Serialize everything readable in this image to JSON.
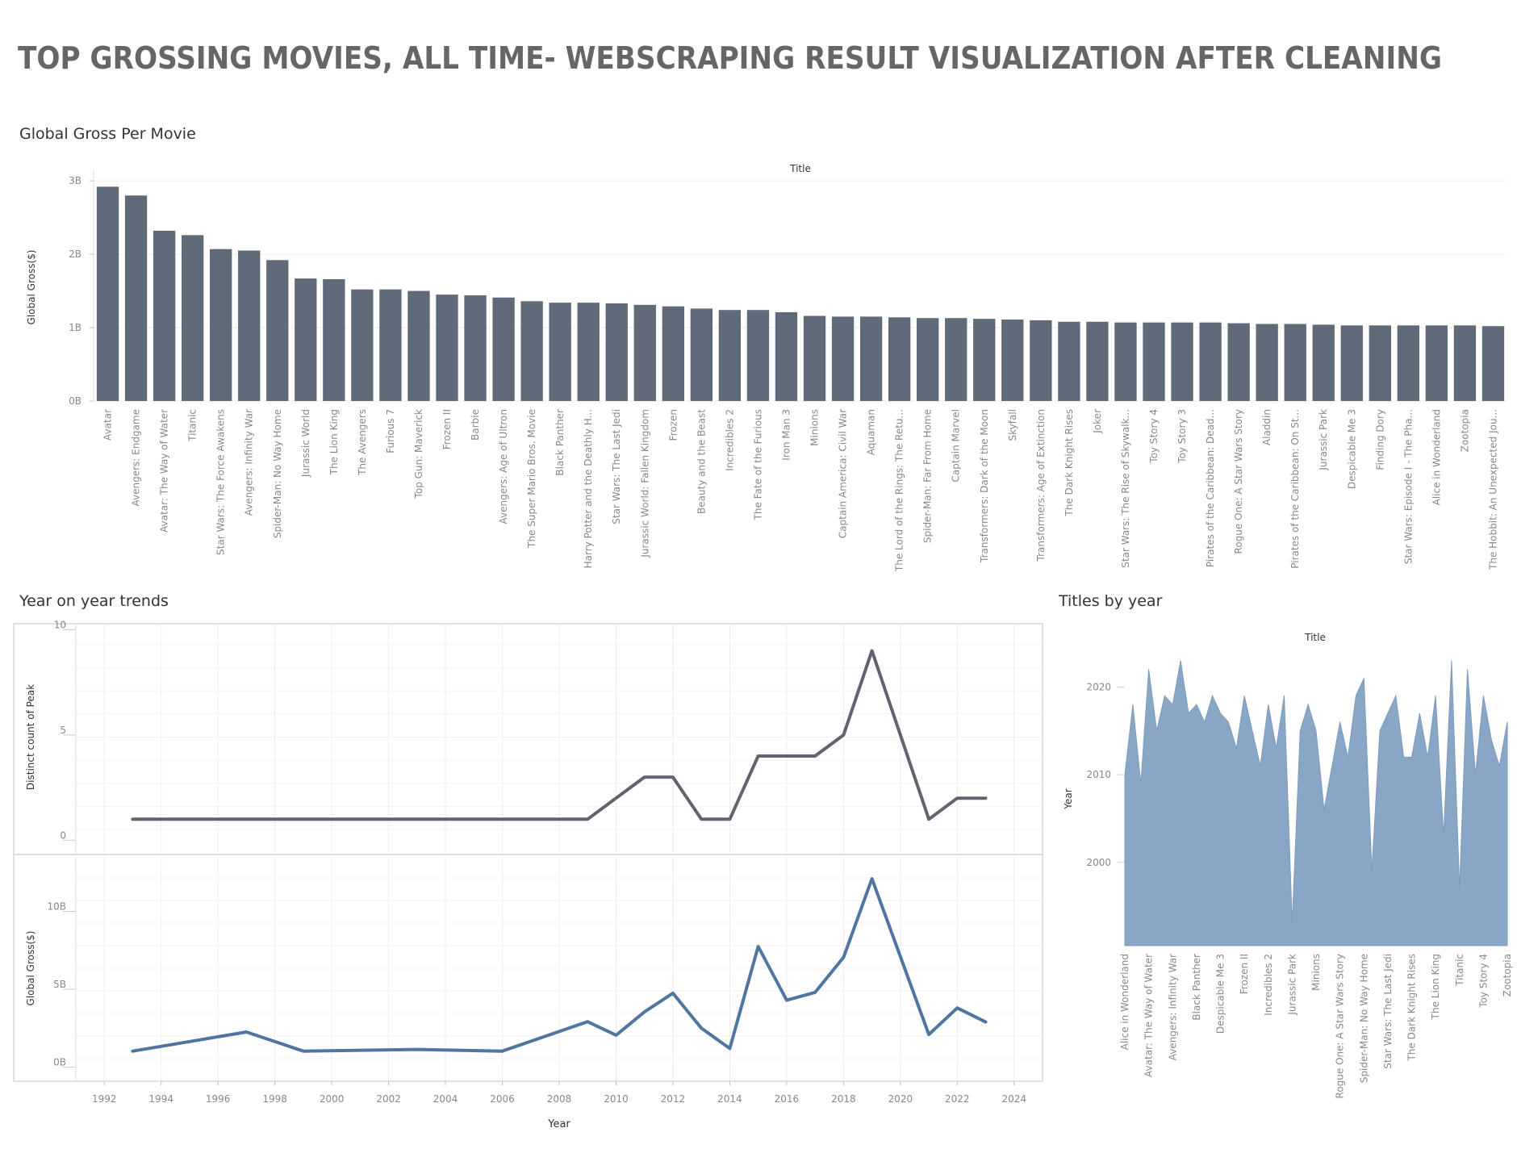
{
  "dashboard": {
    "title": "TOP GROSSING MOVIES, ALL TIME- WEBSCRAPING RESULT VISUALIZATION AFTER CLEANING"
  },
  "colors": {
    "bar": "#5f6b78",
    "line_peak": "#5f6470",
    "line_gross": "#4e76a0",
    "area": "#8aa6c6",
    "grid": "#ececec",
    "axis_text": "#888888",
    "title_text": "#666666"
  },
  "chart_data": [
    {
      "type": "bar",
      "title": "Global Gross Per Movie",
      "header": "Title",
      "xlabel": "",
      "ylabel": "Global Gross($)",
      "ylim": [
        0,
        3.1
      ],
      "yticks": [
        {
          "v": 0,
          "label": "0B"
        },
        {
          "v": 1,
          "label": "1B"
        },
        {
          "v": 2,
          "label": "2B"
        },
        {
          "v": 3,
          "label": "3B"
        }
      ],
      "grid": true,
      "categories": [
        "Avatar",
        "Avengers: Endgame",
        "Avatar: The Way of Water",
        "Titanic",
        "Star Wars: The Force Awakens",
        "Avengers: Infinity War",
        "Spider-Man: No Way Home",
        "Jurassic World",
        "The Lion King",
        "The Avengers",
        "Furious 7",
        "Top Gun: Maverick",
        "Frozen II",
        "Barbie",
        "Avengers: Age of Ultron",
        "The Super Mario Bros. Movie",
        "Black Panther",
        "Harry Potter and the Deathly H...",
        "Star Wars: The Last Jedi",
        "Jurassic World: Fallen Kingdom",
        "Frozen",
        "Beauty and the Beast",
        "Incredibles 2",
        "The Fate of the Furious",
        "Iron Man 3",
        "Minions",
        "Captain America: Civil War",
        "Aquaman",
        "The Lord of the Rings: The Retu...",
        "Spider-Man: Far From Home",
        "Captain Marvel",
        "Transformers: Dark of the Moon",
        "Skyfall",
        "Transformers: Age of Extinction",
        "The Dark Knight Rises",
        "Joker",
        "Star Wars: The Rise of Skywalk...",
        "Toy Story 4",
        "Toy Story 3",
        "Pirates of the Caribbean: Dead...",
        "Rogue One: A Star Wars Story",
        "Aladdin",
        "Pirates of the Caribbean: On St...",
        "Jurassic Park",
        "Despicable Me 3",
        "Finding Dory",
        "Star Wars: Episode I - The Pha...",
        "Alice in Wonderland",
        "Zootopia",
        "The Hobbit: An Unexpected Jou..."
      ],
      "values": [
        2.92,
        2.8,
        2.32,
        2.26,
        2.07,
        2.05,
        1.92,
        1.67,
        1.66,
        1.52,
        1.52,
        1.5,
        1.45,
        1.44,
        1.41,
        1.36,
        1.34,
        1.34,
        1.33,
        1.31,
        1.29,
        1.26,
        1.24,
        1.24,
        1.21,
        1.16,
        1.15,
        1.15,
        1.14,
        1.13,
        1.13,
        1.12,
        1.11,
        1.1,
        1.08,
        1.08,
        1.07,
        1.07,
        1.07,
        1.07,
        1.06,
        1.05,
        1.05,
        1.04,
        1.03,
        1.03,
        1.03,
        1.03,
        1.03,
        1.02
      ]
    },
    {
      "type": "line",
      "title": "Year on year trends",
      "xlabel": "Year",
      "xlim": [
        1991,
        2025
      ],
      "xticks": [
        1992,
        1994,
        1996,
        1998,
        2000,
        2002,
        2004,
        2006,
        2008,
        2010,
        2012,
        2014,
        2016,
        2018,
        2020,
        2022,
        2024
      ],
      "grid": true,
      "panels": [
        {
          "name": "Distinct count of Peak",
          "ylabel": "Distinct count of Peak",
          "ylim": [
            -0.6,
            10.4
          ],
          "yticks": [
            {
              "v": 0,
              "label": "0"
            },
            {
              "v": 5,
              "label": "5"
            },
            {
              "v": 10,
              "label": "10"
            }
          ],
          "x": [
            1993,
            2009,
            2011,
            2012,
            2013,
            2014,
            2015,
            2016,
            2017,
            2018,
            2019,
            2021,
            2022,
            2023
          ],
          "values": [
            1,
            1,
            3,
            3,
            1,
            1,
            4,
            4,
            4,
            5,
            9,
            1,
            2,
            2
          ]
        },
        {
          "name": "Global Gross($)",
          "ylabel": "Global Gross($)",
          "ylim": [
            -0.9,
            13.6
          ],
          "yticks": [
            {
              "v": 0,
              "label": "0B"
            },
            {
              "v": 5,
              "label": "5B"
            },
            {
              "v": 10,
              "label": "10B"
            }
          ],
          "x": [
            1993,
            1997,
            1999,
            2003,
            2006,
            2009,
            2010,
            2011,
            2012,
            2013,
            2014,
            2015,
            2016,
            2017,
            2018,
            2019,
            2021,
            2022,
            2023
          ],
          "values": [
            1.03,
            2.26,
            1.03,
            1.14,
            1.03,
            2.92,
            2.05,
            3.55,
            4.75,
            2.5,
            1.2,
            7.75,
            4.3,
            4.8,
            7.05,
            12.1,
            2.1,
            3.8,
            2.9
          ]
        }
      ]
    },
    {
      "type": "area",
      "title": "Titles by year",
      "header": "Title",
      "ylabel": "Year",
      "ylim": [
        1990.5,
        2024
      ],
      "yticks": [
        {
          "v": 2000,
          "label": "2000"
        },
        {
          "v": 2010,
          "label": "2010"
        },
        {
          "v": 2020,
          "label": "2020"
        }
      ],
      "grid": false,
      "categories": [
        "Alice in Wonderland",
        "Aquaman",
        "Avatar",
        "Avatar: The Way of Water",
        "Avengers: Age of Ultron",
        "Avengers: Endgame",
        "Avengers: Infinity War",
        "Barbie",
        "Beauty and the Beast",
        "Black Panther",
        "Captain America: Civil War",
        "Captain Marvel",
        "Despicable Me 3",
        "Finding Dory",
        "Frozen",
        "Frozen II",
        "Furious 7",
        "Harry Potter and the Deathly H...",
        "Incredibles 2",
        "Iron Man 3",
        "Joker",
        "Jurassic Park",
        "Jurassic World",
        "Jurassic World: Fallen Kingdom",
        "Minions",
        "Pirates of the Caribbean: Dead...",
        "Pirates of the Caribbean: On St...",
        "Rogue One: A Star Wars Story",
        "Skyfall",
        "Spider-Man: Far From Home",
        "Spider-Man: No Way Home",
        "Star Wars: Episode I - The Pha...",
        "Star Wars: The Force Awakens",
        "Star Wars: The Last Jedi",
        "Star Wars: The Rise of Skywalk...",
        "The Avengers",
        "The Dark Knight Rises",
        "The Fate of the Furious",
        "The Hobbit: An Unexpected Jou...",
        "The Lion King",
        "The Lord of the Rings: The Retu...",
        "The Super Mario Bros. Movie",
        "Titanic",
        "Top Gun: Maverick",
        "Toy Story 3",
        "Toy Story 4",
        "Transformers: Age of Extinction",
        "Transformers: Dark of the Moon",
        "Zootopia"
      ],
      "visible_tick_labels": [
        "Alice in Wonderland",
        "Avatar: The Way of Water",
        "Avengers: Infinity War",
        "Black Panther",
        "Despicable Me 3",
        "Frozen II",
        "Incredibles 2",
        "Jurassic Park",
        "Minions",
        "Rogue One: A Star Wars Story",
        "Spider-Man: No Way Home",
        "Star Wars: The Last Jedi",
        "The Dark Knight Rises",
        "The Lion King",
        "Titanic",
        "Toy Story 4",
        "Zootopia"
      ],
      "values": [
        2010,
        2018,
        2009,
        2022,
        2015,
        2019,
        2018,
        2023,
        2017,
        2018,
        2016,
        2019,
        2017,
        2016,
        2013,
        2019,
        2015,
        2011,
        2018,
        2013,
        2019,
        1993,
        2015,
        2018,
        2015,
        2006,
        2011,
        2016,
        2012,
        2019,
        2021,
        1999,
        2015,
        2017,
        2019,
        2012,
        2012,
        2017,
        2012,
        2019,
        2003,
        2023,
        1997,
        2022,
        2010,
        2019,
        2014,
        2011,
        2016
      ]
    }
  ]
}
